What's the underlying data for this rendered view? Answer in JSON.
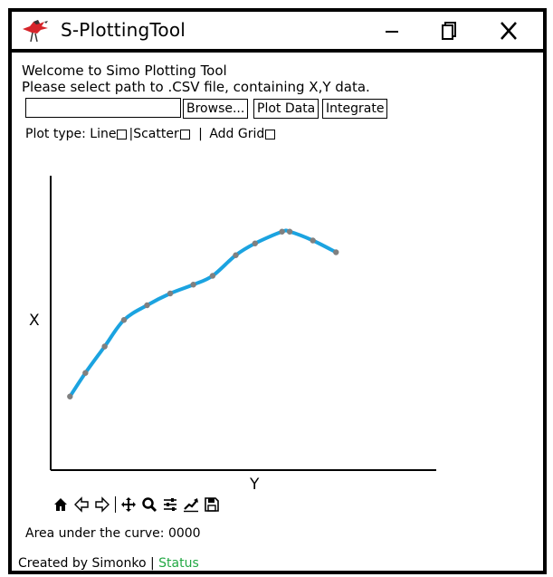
{
  "window": {
    "title": "S-PlottingTool",
    "icons": [
      "bird-logo-icon",
      "minimize-icon",
      "maximize-icon",
      "close-icon"
    ]
  },
  "intro": {
    "welcome": "Welcome to Simo Plotting Tool",
    "instruction": "Please select path to .CSV file, containing X,Y data."
  },
  "file_path": {
    "value": "",
    "placeholder": ""
  },
  "buttons": {
    "browse": "Browse...",
    "plot_data": "Plot Data",
    "integrate": "Integrate"
  },
  "options": {
    "plot_type_label": "Plot type:",
    "line_label": "Line",
    "separator": "|",
    "scatter_label": "Scatter",
    "add_grid_label": "Add Grid",
    "line_checked": false,
    "scatter_checked": false,
    "grid_checked": false
  },
  "plot_toolbar": {
    "tools": [
      "home-icon",
      "back-icon",
      "forward-icon",
      "pan-icon",
      "zoom-icon",
      "configure-icon",
      "edit-curve-icon",
      "save-icon"
    ]
  },
  "result": {
    "label": "Area under the curve:",
    "value": "0000"
  },
  "footer": {
    "created_by": "Created by Simonko",
    "separator": "|",
    "status": "Status",
    "status_color": "#21a843"
  },
  "colors": {
    "line": "#1ba3e0",
    "marker": "#808080"
  },
  "chart_data": {
    "type": "line",
    "xlabel": "Y",
    "ylabel": "X",
    "xlim": [
      0,
      100
    ],
    "ylim": [
      0,
      100
    ],
    "grid": false,
    "x": [
      5,
      9,
      14,
      19,
      25,
      31,
      37,
      42,
      48,
      53,
      60,
      62,
      68,
      74
    ],
    "y": [
      25,
      33,
      42,
      51,
      56,
      60,
      63,
      66,
      73,
      77,
      81,
      81,
      78,
      74
    ]
  }
}
